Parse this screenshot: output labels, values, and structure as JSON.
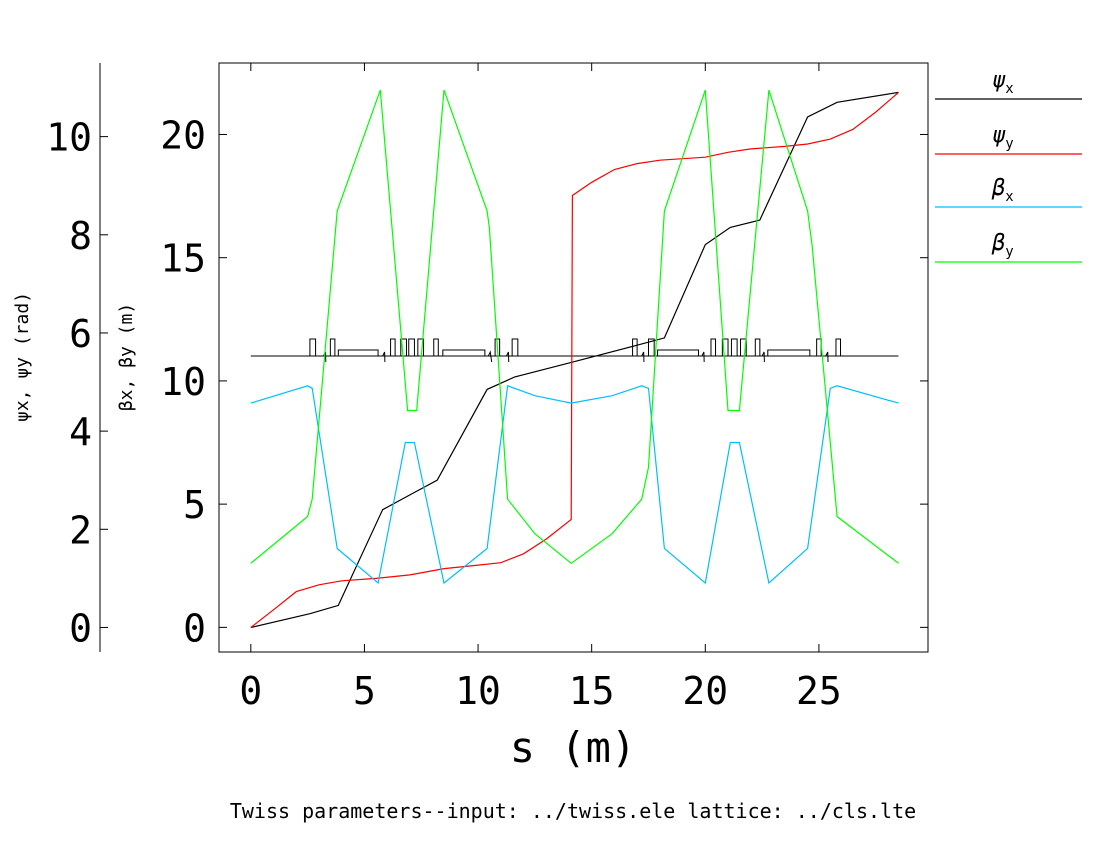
{
  "chart_data": {
    "type": "line",
    "title": "",
    "footer": "Twiss parameters--input: ../twiss.ele  lattice: ../cls.lte",
    "xlabel": "s (m)",
    "xlim": [
      -1.4,
      29.8
    ],
    "x_ticks": [
      "0",
      "5",
      "10",
      "15",
      "20",
      "25"
    ],
    "ylabel_left": "ψx, ψy (rad)",
    "ylim_left": [
      -0.5,
      11.5
    ],
    "y_ticks_left": [
      "0",
      "2",
      "4",
      "6",
      "8",
      "10"
    ],
    "ylabel_right": "βx, βy (m)",
    "ylim_right": [
      -1,
      22.9
    ],
    "y_ticks_right": [
      "0",
      "5",
      "10",
      "15",
      "20"
    ],
    "grid": false,
    "legend_position": "right",
    "legend": [
      {
        "symbol": "ψ",
        "subscript": "x",
        "color": "#000000"
      },
      {
        "symbol": "ψ",
        "subscript": "y",
        "color": "#ff0000"
      },
      {
        "symbol": "β",
        "subscript": "x",
        "color": "#00bfff"
      },
      {
        "symbol": "β",
        "subscript": "y",
        "color": "#00ff00"
      }
    ],
    "series": [
      {
        "axis": "left",
        "color": "#000000",
        "x": [
          0,
          2.6,
          3.85,
          5.8,
          7.0,
          8.2,
          10.4,
          11.6,
          14.1,
          17.0,
          18.2,
          20.0,
          21.1,
          22.4,
          24.5,
          25.8,
          28.5
        ],
        "y": [
          0,
          0.28,
          0.45,
          2.4,
          2.7,
          3.0,
          4.85,
          5.1,
          5.4,
          5.75,
          5.9,
          7.8,
          8.15,
          8.3,
          10.4,
          10.7,
          10.9
        ]
      },
      {
        "axis": "left",
        "color": "#ff0000",
        "x": [
          0,
          1.0,
          2.0,
          3.0,
          4.0,
          5.5,
          7.0,
          8.5,
          10.0,
          11.0,
          12.0,
          13.0,
          14.1,
          14.15,
          15.0,
          16.0,
          17.0,
          18.0,
          19.0,
          20.0,
          21.0,
          22.0,
          23.5,
          24.5,
          25.5,
          26.5,
          27.5,
          28.5
        ],
        "y": [
          0,
          0.36,
          0.73,
          0.87,
          0.95,
          1.0,
          1.07,
          1.2,
          1.27,
          1.32,
          1.5,
          1.8,
          2.2,
          8.8,
          9.07,
          9.33,
          9.45,
          9.52,
          9.55,
          9.58,
          9.68,
          9.75,
          9.8,
          9.85,
          9.95,
          10.15,
          10.5,
          10.9
        ]
      },
      {
        "axis": "right",
        "color": "#00bfff",
        "x": [
          0,
          2.5,
          2.7,
          3.8,
          5.6,
          6.8,
          7.2,
          8.5,
          10.4,
          11.3,
          12.5,
          14.1,
          15.9,
          17.2,
          17.5,
          18.2,
          20.0,
          21.1,
          21.5,
          22.8,
          24.5,
          25.5,
          25.8,
          28.5
        ],
        "y": [
          9.1,
          9.8,
          9.7,
          3.2,
          1.8,
          7.5,
          7.5,
          1.8,
          3.2,
          9.8,
          9.4,
          9.1,
          9.4,
          9.8,
          9.7,
          3.2,
          1.8,
          7.5,
          7.5,
          1.8,
          3.2,
          9.7,
          9.8,
          9.1
        ]
      },
      {
        "axis": "right",
        "color": "#00ff00",
        "x": [
          0,
          2.5,
          2.7,
          3.8,
          5.7,
          6.9,
          7.3,
          8.5,
          10.4,
          10.5,
          11.3,
          12.5,
          14.1,
          15.9,
          17.2,
          17.5,
          18.2,
          20.0,
          21.0,
          21.5,
          22.8,
          24.5,
          24.7,
          25.8,
          28.5
        ],
        "y": [
          2.6,
          4.5,
          5.2,
          16.9,
          21.8,
          8.8,
          8.8,
          21.8,
          16.9,
          16.2,
          5.2,
          3.8,
          2.6,
          3.8,
          5.2,
          6.5,
          16.9,
          21.8,
          8.8,
          8.8,
          21.8,
          16.9,
          15.5,
          4.5,
          2.6
        ]
      }
    ],
    "lattice_elements": [
      {
        "type": "quad",
        "start": 2.6,
        "end": 2.85
      },
      {
        "type": "sext",
        "start": 3.2,
        "end": 3.3
      },
      {
        "type": "quad",
        "start": 3.5,
        "end": 3.7
      },
      {
        "type": "bend",
        "start": 3.85,
        "end": 5.6
      },
      {
        "type": "sext",
        "start": 5.8,
        "end": 5.9
      },
      {
        "type": "quad",
        "start": 6.15,
        "end": 6.35
      },
      {
        "type": "quad",
        "start": 6.6,
        "end": 6.85
      },
      {
        "type": "quad",
        "start": 6.95,
        "end": 7.2
      },
      {
        "type": "quad",
        "start": 7.35,
        "end": 7.6
      },
      {
        "type": "quad",
        "start": 8.05,
        "end": 8.25
      },
      {
        "type": "bend",
        "start": 8.45,
        "end": 10.3
      },
      {
        "type": "sext",
        "start": 10.45,
        "end": 10.6
      },
      {
        "type": "quad",
        "start": 10.75,
        "end": 10.95
      },
      {
        "type": "sext",
        "start": 11.25,
        "end": 11.35
      },
      {
        "type": "quad",
        "start": 11.5,
        "end": 11.75
      },
      {
        "type": "quad",
        "start": 16.8,
        "end": 17.0
      },
      {
        "type": "sext",
        "start": 17.2,
        "end": 17.3
      },
      {
        "type": "quad",
        "start": 17.5,
        "end": 17.75
      },
      {
        "type": "bend",
        "start": 17.9,
        "end": 19.7
      },
      {
        "type": "sext",
        "start": 19.85,
        "end": 19.95
      },
      {
        "type": "quad",
        "start": 20.25,
        "end": 20.45
      },
      {
        "type": "quad",
        "start": 20.75,
        "end": 21.0
      },
      {
        "type": "quad",
        "start": 21.15,
        "end": 21.4
      },
      {
        "type": "quad",
        "start": 21.55,
        "end": 21.8
      },
      {
        "type": "quad",
        "start": 22.2,
        "end": 22.4
      },
      {
        "type": "sext",
        "start": 22.5,
        "end": 22.6
      },
      {
        "type": "bend",
        "start": 22.75,
        "end": 24.6
      },
      {
        "type": "quad",
        "start": 24.9,
        "end": 25.1
      },
      {
        "type": "sext",
        "start": 25.3,
        "end": 25.4
      },
      {
        "type": "quad",
        "start": 25.75,
        "end": 25.95
      }
    ]
  }
}
